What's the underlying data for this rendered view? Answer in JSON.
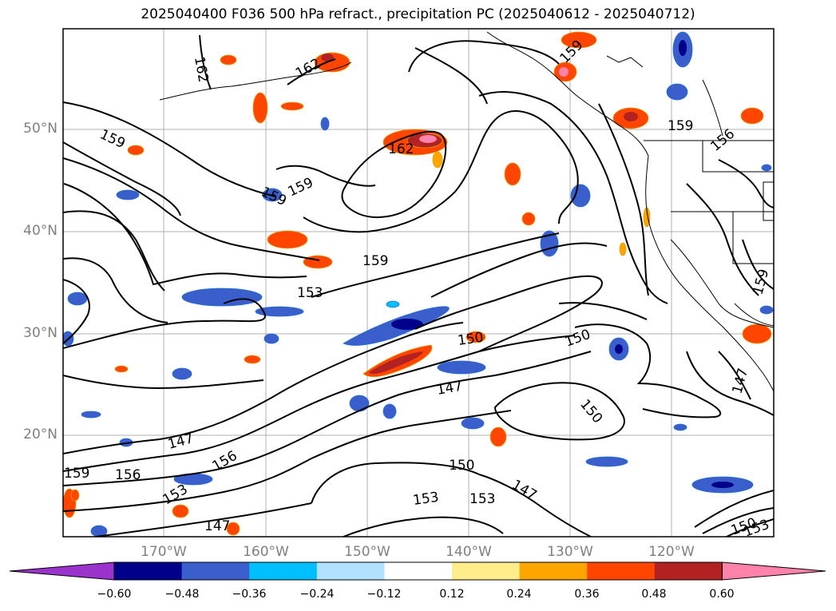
{
  "title": "2025040400 F036 500 hPa refract., precipitation PC (2025040612 - 2025040712)",
  "lat_labels": [
    "50°N",
    "40°N",
    "30°N",
    "20°N"
  ],
  "lon_labels": [
    "170°W",
    "160°W",
    "150°W",
    "140°W",
    "130°W",
    "120°W"
  ],
  "colorbar": {
    "ticks": [
      "−0.60",
      "−0.48",
      "−0.36",
      "−0.24",
      "−0.12",
      "0.12",
      "0.24",
      "0.36",
      "0.48",
      "0.60"
    ],
    "colors": [
      "#9933cc",
      "#00008b",
      "#3a5fcd",
      "#00bfff",
      "#b0e2ff",
      "#ffffff",
      "#ffec8b",
      "#ffa500",
      "#ff4500",
      "#b22222",
      "#ff82ab"
    ]
  },
  "contour_labels": [
    "162",
    "162",
    "159",
    "162",
    "159",
    "159",
    "159",
    "159",
    "156",
    "153",
    "150",
    "150",
    "147",
    "150",
    "147",
    "147",
    "156",
    "159",
    "156",
    "153",
    "150",
    "153",
    "153",
    "147",
    "147",
    "150",
    "153",
    "159",
    "159"
  ]
}
